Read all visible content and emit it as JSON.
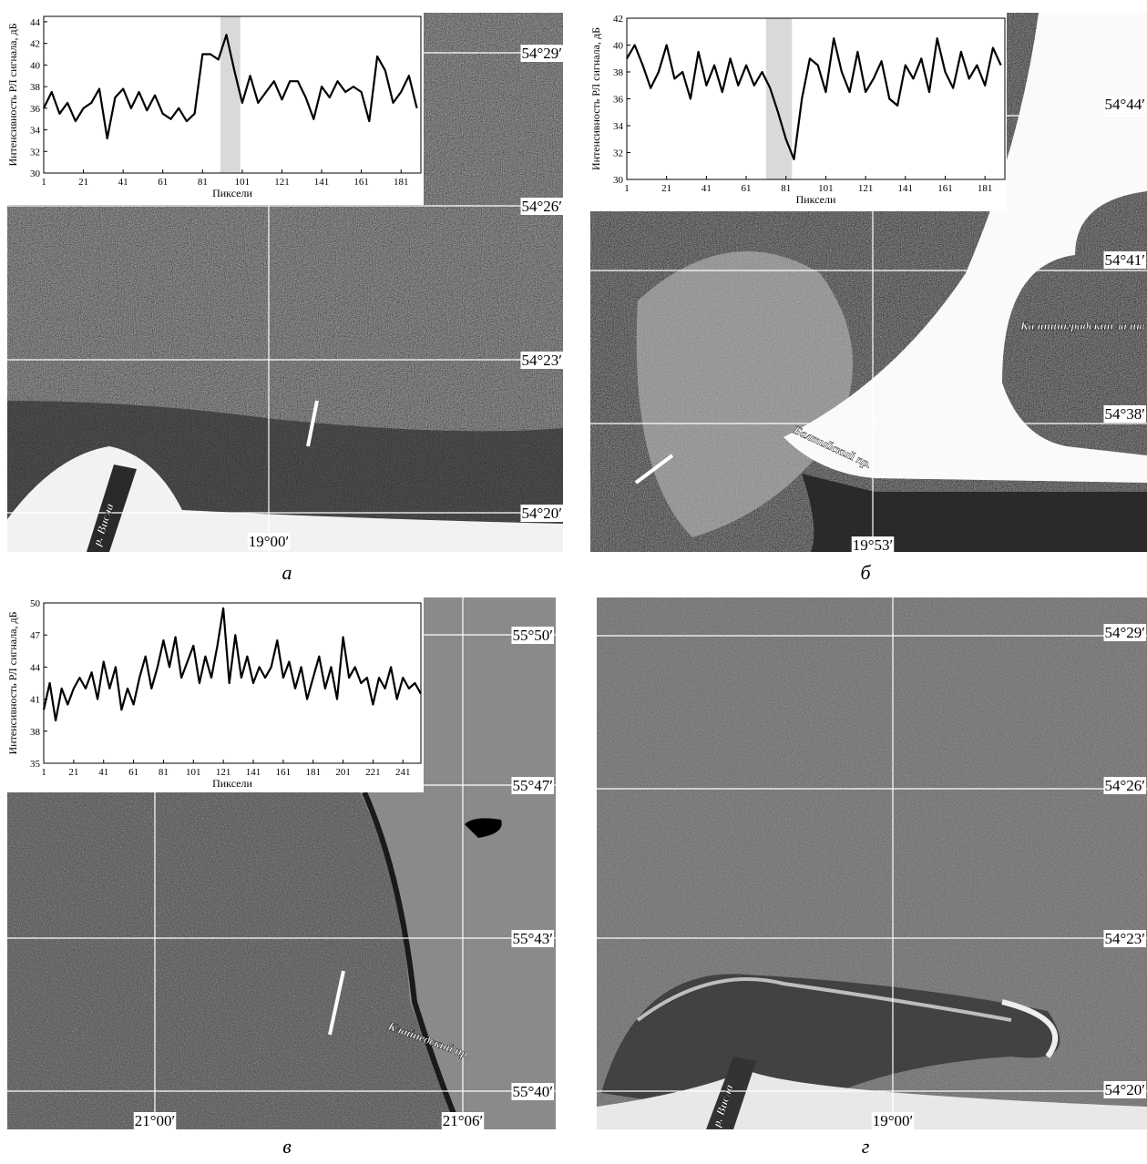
{
  "chart_data": [
    {
      "type": "line",
      "y_label": "Интенсивность РЛ сигнала, дБ",
      "x_label": "Пиксели",
      "xlim": [
        1,
        191
      ],
      "ylim": [
        30,
        44.5
      ],
      "xticks": [
        1,
        21,
        41,
        61,
        81,
        101,
        121,
        141,
        161,
        181
      ],
      "yticks": [
        30,
        32,
        34,
        36,
        38,
        40,
        42,
        44
      ],
      "highlight": [
        90,
        100
      ],
      "color": "#000000",
      "x": [
        1,
        5,
        9,
        13,
        17,
        21,
        25,
        29,
        33,
        37,
        41,
        45,
        49,
        53,
        57,
        61,
        65,
        69,
        73,
        77,
        81,
        85,
        89,
        93,
        97,
        101,
        105,
        109,
        113,
        117,
        121,
        125,
        129,
        133,
        137,
        141,
        145,
        149,
        153,
        157,
        161,
        165,
        169,
        173,
        177,
        181,
        185,
        189
      ],
      "values": [
        36,
        37.5,
        35.5,
        36.5,
        34.8,
        36,
        36.5,
        37.8,
        33.2,
        37,
        37.8,
        36,
        37.5,
        35.8,
        37.2,
        35.5,
        35,
        36,
        34.8,
        35.5,
        41,
        41,
        40.5,
        42.8,
        39.5,
        36.5,
        39,
        36.5,
        37.5,
        38.5,
        36.8,
        38.5,
        38.5,
        37,
        35,
        38,
        37,
        38.5,
        37.5,
        38,
        37.5,
        34.8,
        40.8,
        39.5,
        36.5,
        37.5,
        39,
        36
      ]
    },
    {
      "type": "line",
      "y_label": "Интенсивность РЛ сигнала, дБ",
      "x_label": "Пиксели",
      "xlim": [
        1,
        191
      ],
      "ylim": [
        30,
        42
      ],
      "xticks": [
        1,
        21,
        41,
        61,
        81,
        101,
        121,
        141,
        161,
        181
      ],
      "yticks": [
        30,
        32,
        34,
        36,
        38,
        40,
        42
      ],
      "highlight": [
        71,
        84
      ],
      "color": "#000000",
      "x": [
        1,
        5,
        9,
        13,
        17,
        21,
        25,
        29,
        33,
        37,
        41,
        45,
        49,
        53,
        57,
        61,
        65,
        69,
        73,
        77,
        81,
        85,
        89,
        93,
        97,
        101,
        105,
        109,
        113,
        117,
        121,
        125,
        129,
        133,
        137,
        141,
        145,
        149,
        153,
        157,
        161,
        165,
        169,
        173,
        177,
        181,
        185,
        189
      ],
      "values": [
        39,
        40,
        38.5,
        36.8,
        38,
        40,
        37.5,
        38,
        36,
        39.5,
        37,
        38.5,
        36.5,
        39,
        37,
        38.5,
        37,
        38,
        36.8,
        35,
        33,
        31.5,
        36,
        39,
        38.5,
        36.5,
        40.5,
        38,
        36.5,
        39.5,
        36.5,
        37.5,
        38.8,
        36,
        35.5,
        38.5,
        37.5,
        39,
        36.5,
        40.5,
        38,
        36.8,
        39.5,
        37.5,
        38.5,
        37,
        39.8,
        38.5
      ]
    },
    {
      "type": "line",
      "y_label": "Интенсивность РЛ сигнала, дБ",
      "x_label": "Пиксели",
      "xlim": [
        1,
        253
      ],
      "ylim": [
        35,
        50
      ],
      "xticks": [
        1,
        21,
        41,
        61,
        81,
        101,
        121,
        141,
        161,
        181,
        201,
        221,
        241
      ],
      "yticks": [
        35,
        38,
        41,
        44,
        47,
        50
      ],
      "color": "#000000",
      "x": [
        1,
        5,
        9,
        13,
        17,
        21,
        25,
        29,
        33,
        37,
        41,
        45,
        49,
        53,
        57,
        61,
        65,
        69,
        73,
        77,
        81,
        85,
        89,
        93,
        97,
        101,
        105,
        109,
        113,
        117,
        121,
        125,
        129,
        133,
        137,
        141,
        145,
        149,
        153,
        157,
        161,
        165,
        169,
        173,
        177,
        181,
        185,
        189,
        193,
        197,
        201,
        205,
        209,
        213,
        217,
        221,
        225,
        229,
        233,
        237,
        241,
        245,
        249,
        253
      ],
      "values": [
        40,
        42.5,
        39,
        42,
        40.5,
        42,
        43,
        42,
        43.5,
        41,
        44.5,
        42,
        44,
        40,
        42,
        40.5,
        43,
        45,
        42,
        44,
        46.5,
        44,
        46.8,
        43,
        44.5,
        46,
        42.5,
        45,
        43,
        46,
        49.5,
        42.5,
        47,
        43,
        45,
        42.5,
        44,
        43,
        44,
        46.5,
        43,
        44.5,
        42,
        44,
        41,
        43,
        45,
        42,
        44,
        41,
        46.8,
        43,
        44,
        42.5,
        43,
        40.5,
        43,
        42,
        44,
        41,
        43,
        42,
        42.5,
        41.5
      ]
    }
  ],
  "panels": [
    {
      "label": "а",
      "lat": [
        "54°29′",
        "54°26′",
        "54°23′",
        "54°20′"
      ],
      "lon": [
        "19°00′"
      ],
      "annotations": [
        "р. Висла"
      ]
    },
    {
      "label": "б",
      "lat": [
        "54°44′",
        "54°41′",
        "54°38′"
      ],
      "lon": [
        "19°53′"
      ],
      "annotations": [
        "Калининградский залив",
        "Балтийский пр."
      ]
    },
    {
      "label": "в",
      "lat": [
        "55°50′",
        "55°47′",
        "55°43′",
        "55°40′"
      ],
      "lon": [
        "21°00′",
        "21°06′"
      ],
      "annotations": [
        "Клайпедский пр."
      ]
    },
    {
      "label": "г",
      "lat": [
        "54°29′",
        "54°26′",
        "54°23′",
        "54°20′"
      ],
      "lon": [
        "19°00′"
      ],
      "annotations": [
        "р. Висла"
      ]
    }
  ]
}
